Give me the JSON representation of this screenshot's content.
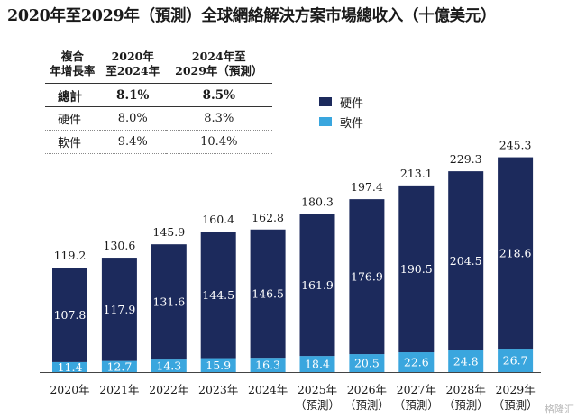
{
  "chart_data": {
    "type": "bar",
    "stacked": true,
    "title": "2020年至2029年（預測）全球網絡解決方案市場總收入（十億美元）",
    "categories": [
      [
        "2020年"
      ],
      [
        "2021年"
      ],
      [
        "2022年"
      ],
      [
        "2023年"
      ],
      [
        "2024年"
      ],
      [
        "2025年",
        "（預測）"
      ],
      [
        "2026年",
        "（預測）"
      ],
      [
        "2027年",
        "（預測）"
      ],
      [
        "2028年",
        "（預測）"
      ],
      [
        "2029年",
        "（預測）"
      ]
    ],
    "series": [
      {
        "name": "軟件",
        "color": "#3aa6de",
        "values": [
          11.4,
          12.7,
          14.3,
          15.9,
          16.3,
          18.4,
          20.5,
          22.6,
          24.8,
          26.7
        ]
      },
      {
        "name": "硬件",
        "color": "#1c2a5c",
        "values": [
          107.8,
          117.9,
          131.6,
          144.5,
          146.5,
          161.9,
          176.9,
          190.5,
          204.5,
          218.6
        ]
      }
    ],
    "totals": [
      119.2,
      130.6,
      145.9,
      160.4,
      162.8,
      180.3,
      197.4,
      213.1,
      229.3,
      245.3
    ],
    "legend": [
      "硬件",
      "軟件"
    ],
    "legend_position": "top-center",
    "grid": false,
    "ylim": [
      0,
      250
    ],
    "xlabel": "",
    "ylabel": "",
    "cagr_table": {
      "headers": [
        [
          "複合",
          "年增長率"
        ],
        [
          "2020年",
          "至2024年"
        ],
        [
          "2024年至",
          "2029年（預測）"
        ]
      ],
      "rows": [
        {
          "label": "總計",
          "a": "8.1%",
          "b": "8.5%",
          "bold": true
        },
        {
          "label": "硬件",
          "a": "8.0%",
          "b": "8.3%"
        },
        {
          "label": "軟件",
          "a": "9.4%",
          "b": "10.4%"
        }
      ]
    }
  },
  "watermark": "格隆汇"
}
